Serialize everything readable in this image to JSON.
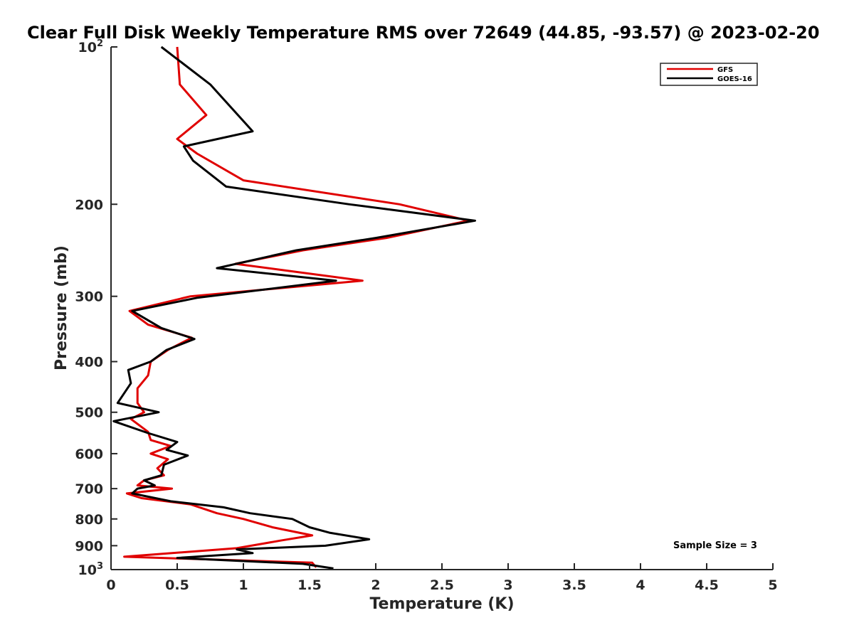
{
  "chart_data": {
    "type": "line",
    "title": "Clear Full Disk Weekly Temperature RMS over 72649 (44.85, -93.57) @ 2023-02-20",
    "xlabel": "Temperature (K)",
    "ylabel": "Pressure (mb)",
    "xlim": [
      0,
      5
    ],
    "ylim": [
      1000,
      100
    ],
    "y_scale": "log",
    "y_reversed": true,
    "grid": false,
    "legend_position": "top-right",
    "x_ticks": [
      "0",
      "0.5",
      "1",
      "1.5",
      "2",
      "2.5",
      "3",
      "3.5",
      "4",
      "4.5",
      "5"
    ],
    "y_ticks": [
      {
        "value": 100,
        "base": "10",
        "exp": "2"
      },
      {
        "value": 200,
        "label": "200"
      },
      {
        "value": 300,
        "label": "300"
      },
      {
        "value": 400,
        "label": "400"
      },
      {
        "value": 500,
        "label": "500"
      },
      {
        "value": 600,
        "label": "600"
      },
      {
        "value": 700,
        "label": "700"
      },
      {
        "value": 800,
        "label": "800"
      },
      {
        "value": 900,
        "label": "900"
      },
      {
        "value": 1000,
        "base": "10",
        "exp": "3"
      }
    ],
    "annotation": "Sample Size = 3",
    "series": [
      {
        "name": "GFS",
        "color": "#e00000",
        "x": [
          0.5,
          0.52,
          0.72,
          0.5,
          0.65,
          1.0,
          2.18,
          2.7,
          2.08,
          1.45,
          0.94,
          1.9,
          0.6,
          0.14,
          0.28,
          0.61,
          0.43,
          0.3,
          0.28,
          0.2,
          0.2,
          0.25,
          0.15,
          0.28,
          0.3,
          0.45,
          0.3,
          0.43,
          0.35,
          0.4,
          0.25,
          0.2,
          0.46,
          0.12,
          0.23,
          0.6,
          0.8,
          1.0,
          1.22,
          1.52,
          1.28,
          0.95,
          0.1,
          1.52,
          1.55
        ],
        "y": [
          100,
          118,
          135,
          150,
          160,
          180,
          200,
          215,
          232,
          245,
          260,
          280,
          300,
          320,
          340,
          360,
          380,
          400,
          425,
          450,
          480,
          500,
          515,
          545,
          565,
          580,
          600,
          615,
          640,
          660,
          675,
          690,
          700,
          715,
          730,
          750,
          780,
          800,
          830,
          860,
          880,
          910,
          945,
          970,
          990
        ]
      },
      {
        "name": "GOES-16",
        "color": "#000000",
        "x": [
          0.38,
          0.75,
          1.07,
          0.55,
          0.62,
          0.87,
          1.8,
          2.75,
          2.0,
          1.4,
          0.8,
          1.7,
          0.65,
          0.16,
          0.38,
          0.63,
          0.42,
          0.3,
          0.13,
          0.15,
          0.05,
          0.36,
          0.02,
          0.28,
          0.5,
          0.42,
          0.58,
          0.4,
          0.38,
          0.25,
          0.33,
          0.2,
          0.16,
          0.45,
          0.85,
          1.05,
          1.37,
          1.5,
          1.65,
          1.95,
          1.62,
          0.95,
          1.07,
          0.5,
          1.45,
          1.68
        ],
        "y": [
          100,
          118,
          145,
          155,
          165,
          185,
          200,
          215,
          232,
          245,
          265,
          280,
          302,
          320,
          345,
          362,
          380,
          400,
          415,
          440,
          480,
          500,
          520,
          548,
          570,
          590,
          605,
          630,
          660,
          675,
          690,
          700,
          715,
          740,
          760,
          780,
          800,
          830,
          850,
          875,
          900,
          915,
          930,
          950,
          975,
          995
        ]
      }
    ]
  }
}
